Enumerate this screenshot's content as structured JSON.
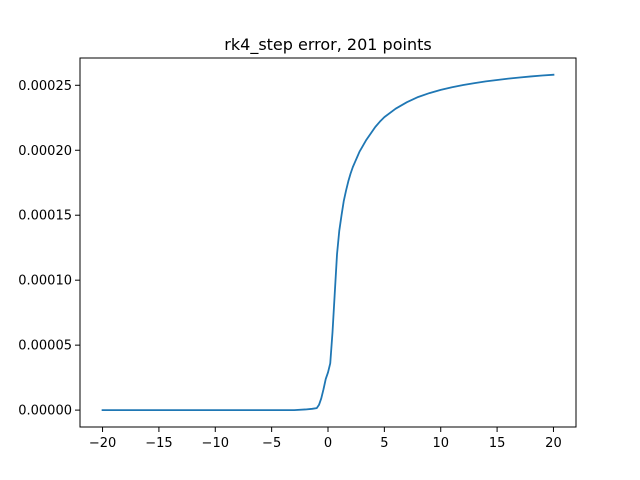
{
  "chart_data": {
    "type": "line",
    "title": "rk4_step error, 201 points",
    "xlabel": "",
    "ylabel": "",
    "xlim": [
      -20,
      20
    ],
    "ylim": [
      0,
      0.00026
    ],
    "grid": false,
    "legend": "none",
    "colors": {
      "line": "#1f77b4",
      "axes": "#000000",
      "background": "#ffffff"
    },
    "x_ticks": [
      -20,
      -15,
      -10,
      -5,
      0,
      5,
      10,
      15,
      20
    ],
    "x_tick_labels": [
      "−20",
      "−15",
      "−10",
      "−5",
      "0",
      "5",
      "10",
      "15",
      "20"
    ],
    "y_ticks": [
      0,
      5e-05,
      0.0001,
      0.00015,
      0.0002,
      0.00025
    ],
    "y_tick_labels": [
      "0.00000",
      "0.00005",
      "0.00010",
      "0.00015",
      "0.00020",
      "0.00025"
    ],
    "series": [
      {
        "x": [
          -20,
          -15,
          -10,
          -5,
          -3,
          -2,
          -1.4,
          -1.0,
          -0.8,
          -0.6,
          -0.4,
          -0.2,
          0,
          0.2,
          0.4,
          0.6,
          0.8,
          1.0,
          1.2,
          1.4,
          1.6,
          1.8,
          2.0,
          2.2,
          2.4,
          2.6,
          2.8,
          3.0,
          3.4,
          3.8,
          4.2,
          4.6,
          5,
          6,
          7,
          8,
          9,
          10,
          11,
          12,
          13,
          14,
          15,
          16,
          17,
          18,
          19,
          20
        ],
        "y": [
          0.0,
          0.0,
          0.0,
          0.0,
          0.0,
          5e-07,
          1e-06,
          1.5e-06,
          4e-06,
          9e-06,
          1.6e-05,
          2.4e-05,
          2.9e-05,
          3.6e-05,
          6e-05,
          9e-05,
          0.00012,
          0.000138,
          0.00015,
          0.000161,
          0.000169,
          0.000176,
          0.000182,
          0.000187,
          0.000191,
          0.000195,
          0.000199,
          0.000202,
          0.000208,
          0.000213,
          0.000218,
          0.000222,
          0.0002255,
          0.000232,
          0.000237,
          0.000241,
          0.000244,
          0.0002465,
          0.0002485,
          0.0002502,
          0.0002517,
          0.000253,
          0.0002541,
          0.0002551,
          0.000256,
          0.0002568,
          0.0002575,
          0.0002581
        ]
      }
    ]
  }
}
